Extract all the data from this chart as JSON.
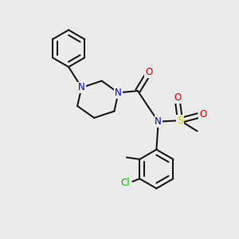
{
  "bg_color": "#ebebeb",
  "bond_color": "#1a1a1a",
  "N_color": "#0000ee",
  "O_color": "#dd0000",
  "S_color": "#cccc00",
  "Cl_color": "#00bb00",
  "bond_lw": 1.5,
  "font_size": 8.5,
  "figsize": [
    3.0,
    3.0
  ],
  "dpi": 100,
  "xlim": [
    0,
    10
  ],
  "ylim": [
    0,
    10
  ]
}
